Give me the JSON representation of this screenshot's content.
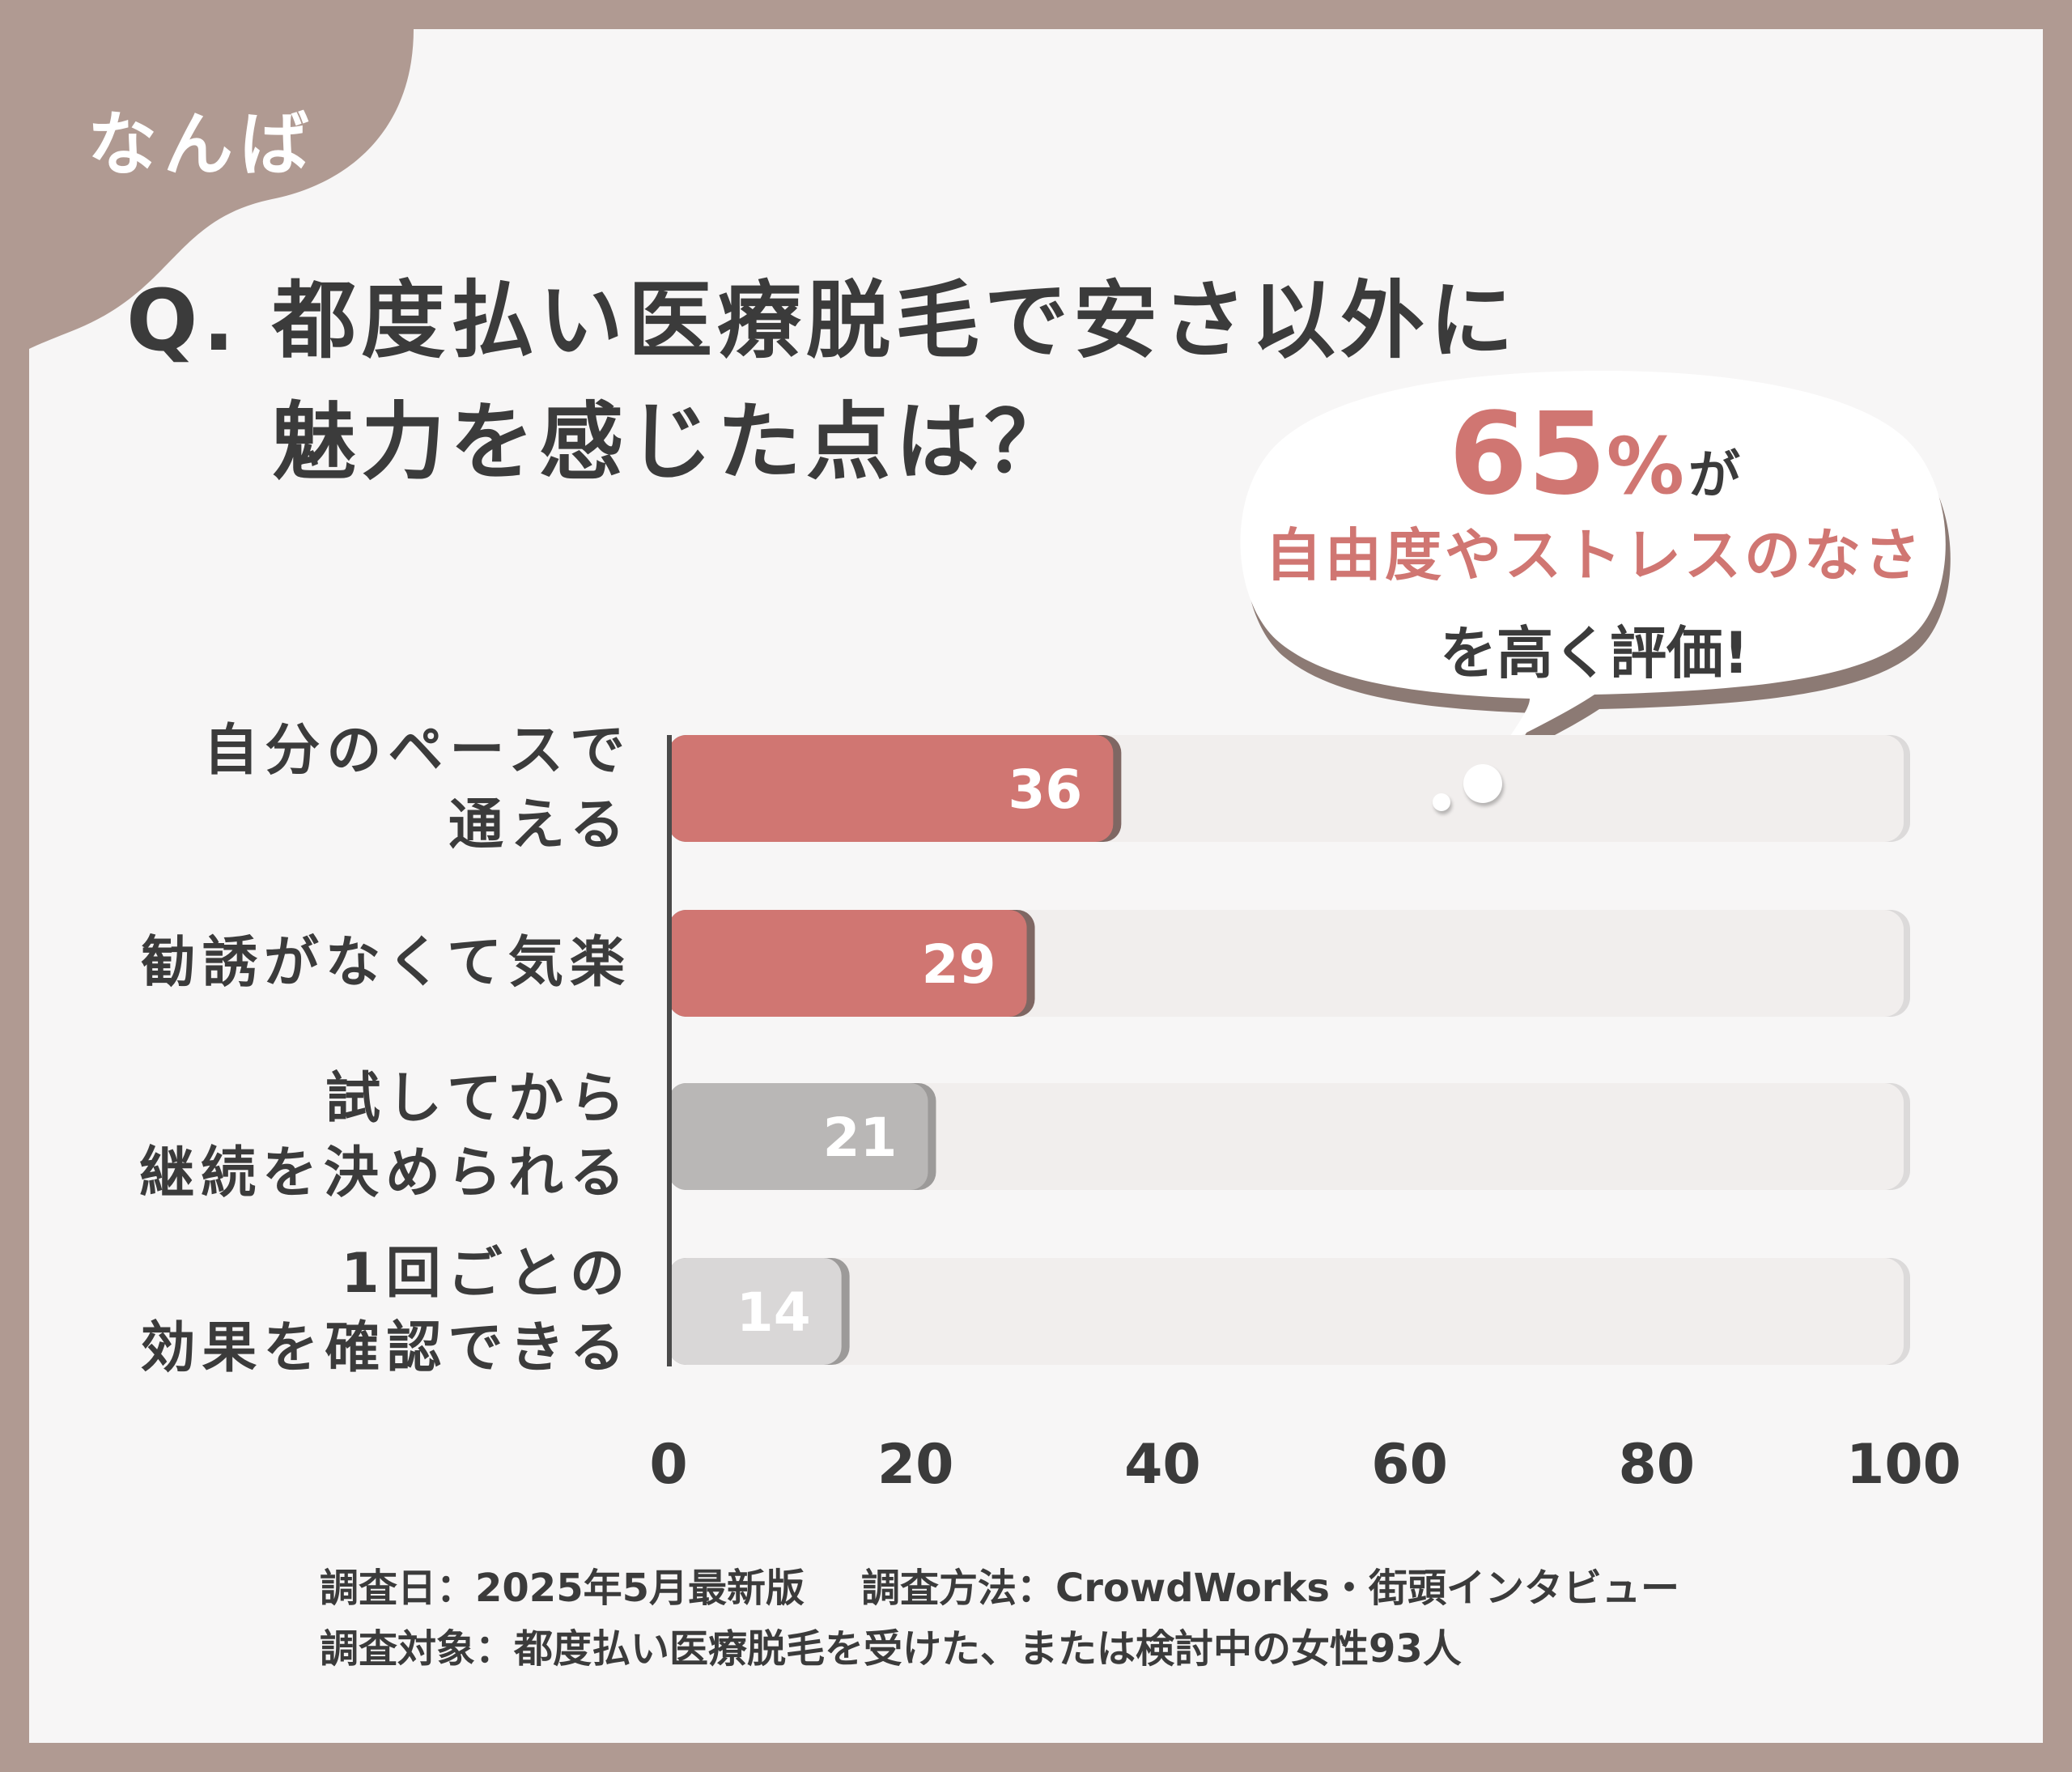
{
  "region": "なんば",
  "title": {
    "prefix": "Q.",
    "line1": "都度払い医療脱毛で安さ以外に",
    "line2": "魅力を感じた点は？"
  },
  "callout": {
    "percent": "65",
    "percent_sign": "%",
    "ga": "が",
    "highlight": "自由度やストレスのなさ",
    "tail": "を高く評価!"
  },
  "chart_data": {
    "type": "bar",
    "orientation": "horizontal",
    "categories": [
      [
        "自分のペースで",
        "通える"
      ],
      [
        "勧誘がなくて気楽"
      ],
      [
        "試してから",
        "継続を決められる"
      ],
      [
        "1回ごとの",
        "効果を確認できる"
      ]
    ],
    "values": [
      36,
      29,
      21,
      14
    ],
    "value_labels": [
      "36",
      "29",
      "21",
      "14"
    ],
    "bar_colors": [
      "#d07672",
      "#d07672",
      "#b9b7b6",
      "#d9d7d7"
    ],
    "xlim": [
      0,
      100
    ],
    "xticks": [
      0,
      20,
      40,
      60,
      80,
      100
    ],
    "xtick_labels": [
      "0",
      "20",
      "40",
      "60",
      "80",
      "100"
    ]
  },
  "footer": {
    "date": "調査日：2025年5月最新版",
    "method": "調査方法：CrowdWorks・街頭インタビュー",
    "target": "調査対象：都度払い医療脱毛を受けた、または検討中の女性93人"
  },
  "colors": {
    "frame": "#b09a92",
    "accent": "#d07672",
    "text": "#3b3b3b",
    "track": "#f1eeed"
  }
}
